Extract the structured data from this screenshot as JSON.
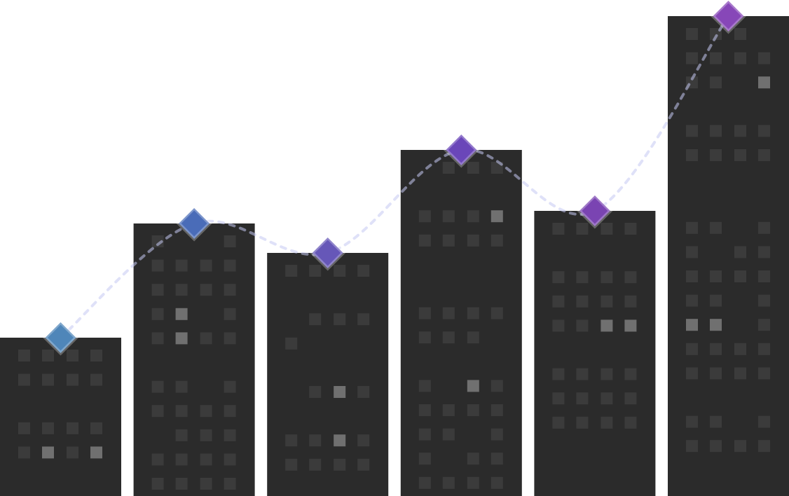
{
  "chart_data": {
    "type": "bar",
    "categories": [
      null,
      null,
      null,
      null,
      null,
      null
    ],
    "values": [
      226,
      389,
      347,
      494,
      407,
      685
    ],
    "ylim": [
      0,
      708
    ],
    "bar_color": "#2b2b2b",
    "colors": [
      "#4f86b9",
      "#4a6cb8",
      "#6657b8",
      "#6a46b9",
      "#7a44b2",
      "#8747b8"
    ],
    "line": true
  }
}
